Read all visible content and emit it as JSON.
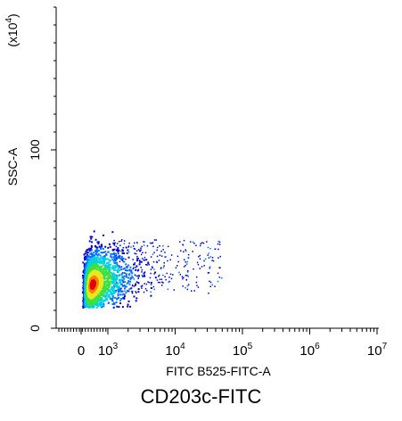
{
  "caption": "CD203c-FITC",
  "chart_data": {
    "type": "scatter",
    "subtype": "flow-cytometry-density-dot-plot",
    "xlabel": "FITC B525-FITC-A",
    "ylabel": "SSC-A",
    "y_multiplier_label": "(x10",
    "y_multiplier_exp": "4",
    "y_multiplier_close": ")",
    "xscale": "biexponential",
    "x_ticks": [
      {
        "value": 0,
        "base": "0",
        "exp": ""
      },
      {
        "value": 1000,
        "base": "10",
        "exp": "3"
      },
      {
        "value": 10000,
        "base": "10",
        "exp": "4"
      },
      {
        "value": 100000,
        "base": "10",
        "exp": "5"
      },
      {
        "value": 1000000,
        "base": "10",
        "exp": "6"
      },
      {
        "value": 10000000,
        "base": "10",
        "exp": "7"
      }
    ],
    "y_ticks": [
      0,
      100
    ],
    "ylim": [
      0,
      180
    ],
    "grid": false,
    "legend": "none",
    "populations": [
      {
        "name": "main",
        "x_center": 400,
        "y_center": 25,
        "x_spread_decades": 0.35,
        "y_spread": 9,
        "count": 2600,
        "density": "high"
      },
      {
        "name": "tail",
        "x_range": [
          1200,
          50000
        ],
        "y_range": [
          20,
          50
        ],
        "count": 330,
        "density": "low"
      }
    ],
    "colormap": [
      "#0000c8",
      "#0070ff",
      "#00d0e0",
      "#3ce040",
      "#e8e820",
      "#ff8000",
      "#e00000"
    ]
  }
}
